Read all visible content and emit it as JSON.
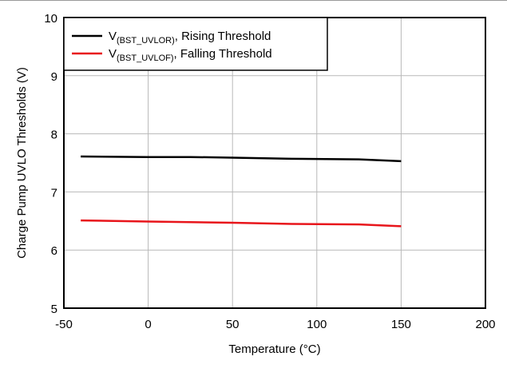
{
  "chart_data": {
    "type": "line",
    "title": "",
    "xlabel": "Temperature (°C)",
    "ylabel": "Charge Pump UVLO Thresholds (V)",
    "xlim": [
      -50,
      200
    ],
    "ylim": [
      5,
      10
    ],
    "xticks": [
      "-50",
      "0",
      "50",
      "100",
      "150",
      "200"
    ],
    "yticks": [
      "5",
      "6",
      "7",
      "8",
      "9",
      "10"
    ],
    "grid": true,
    "legend_position": "top-left",
    "series": [
      {
        "name_main": "V",
        "name_sub": "(BST_UVLOR)",
        "name_rest": ", Rising Threshold",
        "color": "#000000",
        "x": [
          -40,
          0,
          25,
          50,
          85,
          125,
          150
        ],
        "y": [
          7.61,
          7.6,
          7.6,
          7.59,
          7.57,
          7.56,
          7.53
        ]
      },
      {
        "name_main": "V",
        "name_sub": "(BST_UVLOF)",
        "name_rest": ", Falling Threshold",
        "color": "#e8151b",
        "x": [
          -40,
          0,
          25,
          50,
          85,
          125,
          150
        ],
        "y": [
          6.51,
          6.49,
          6.48,
          6.47,
          6.45,
          6.44,
          6.41
        ]
      }
    ]
  }
}
